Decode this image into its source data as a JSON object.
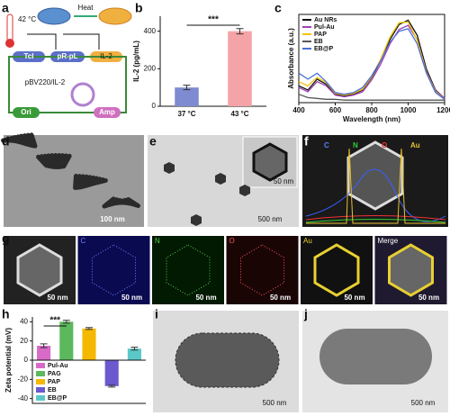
{
  "panel_labels": [
    "a",
    "b",
    "c",
    "d",
    "e",
    "f",
    "g",
    "h",
    "i",
    "j"
  ],
  "diagram": {
    "temperature": "42 °C",
    "heat": "Heat",
    "genes": [
      "TcI",
      "pR-pL",
      "IL-2"
    ],
    "plasmid": "pBV220/IL-2",
    "ori": "Ori",
    "amp": "Amp"
  },
  "chart_data": [
    {
      "type": "bar",
      "ylabel": "IL-2 (pg/mL)",
      "categories": [
        "37 °C",
        "43 °C"
      ],
      "values": [
        100,
        400
      ],
      "errors": [
        12,
        14
      ],
      "colors": [
        "#7f8bd0",
        "#f4a3a6"
      ],
      "ylim": [
        0,
        480
      ],
      "yticks": [
        0,
        200,
        400
      ],
      "annotation": "***"
    },
    {
      "type": "line",
      "xlabel": "Wavelength (nm)",
      "ylabel": "Absorbance (a.u.)",
      "x": [
        400,
        450,
        500,
        550,
        600,
        650,
        700,
        750,
        800,
        850,
        900,
        950,
        1000,
        1050,
        1100,
        1150,
        1200
      ],
      "xlim": [
        400,
        1200
      ],
      "xticks": [
        400,
        600,
        800,
        1000,
        1200
      ],
      "ylim": [
        0,
        1.05
      ],
      "legend": "upper left",
      "series": [
        {
          "name": "Au NRs",
          "color": "#111111",
          "values": [
            0.2,
            0.15,
            0.28,
            0.22,
            0.1,
            0.08,
            0.1,
            0.15,
            0.3,
            0.5,
            0.75,
            0.93,
            0.98,
            0.8,
            0.4,
            0.15,
            0.05
          ]
        },
        {
          "name": "Pul-Au",
          "color": "#a040b8",
          "values": [
            0.18,
            0.13,
            0.25,
            0.2,
            0.09,
            0.07,
            0.09,
            0.13,
            0.27,
            0.46,
            0.7,
            0.87,
            0.92,
            0.75,
            0.37,
            0.14,
            0.05
          ]
        },
        {
          "name": "PAP",
          "color": "#f2c200",
          "values": [
            0.25,
            0.2,
            0.3,
            0.24,
            0.11,
            0.09,
            0.11,
            0.16,
            0.31,
            0.52,
            0.78,
            0.95,
            0.96,
            0.74,
            0.36,
            0.13,
            0.04
          ]
        },
        {
          "name": "EB",
          "color": "#555555",
          "values": [
            0.1,
            0.06,
            0.05,
            0.04,
            0.04,
            0.03,
            0.03,
            0.03,
            0.03,
            0.03,
            0.03,
            0.03,
            0.03,
            0.03,
            0.03,
            0.03,
            0.03
          ]
        },
        {
          "name": "EB@P",
          "color": "#4a6fd8",
          "values": [
            0.35,
            0.28,
            0.35,
            0.25,
            0.12,
            0.1,
            0.12,
            0.18,
            0.32,
            0.5,
            0.72,
            0.85,
            0.88,
            0.7,
            0.35,
            0.12,
            0.04
          ]
        }
      ]
    },
    {
      "type": "bar",
      "ylabel": "Zeta potential (mV)",
      "categories": [
        "Pul-Au",
        "PAG",
        "PAP",
        "EB",
        "EB@P"
      ],
      "values": [
        15,
        40,
        33,
        -27,
        12
      ],
      "errors": [
        2,
        1.5,
        1,
        1,
        1.5
      ],
      "colors": [
        "#d86ac8",
        "#5cb85c",
        "#f5b800",
        "#6a5acd",
        "#5bc8c8"
      ],
      "ylim": [
        -45,
        45
      ],
      "yticks": [
        -40,
        -20,
        0,
        20,
        40
      ],
      "legend": "lower left",
      "annotation": "***"
    }
  ],
  "images": {
    "d": {
      "scale": "100 nm"
    },
    "e": {
      "scale": "500 nm",
      "inset_scale": "50 nm"
    },
    "f": {
      "elements": [
        "C",
        "N",
        "O",
        "Au"
      ]
    },
    "g": {
      "tiles": [
        "",
        "C",
        "N",
        "O",
        "Au",
        "Merge"
      ],
      "scale": "50 nm"
    },
    "i": {
      "scale": "500 nm"
    },
    "j": {
      "scale": "500 nm"
    }
  }
}
